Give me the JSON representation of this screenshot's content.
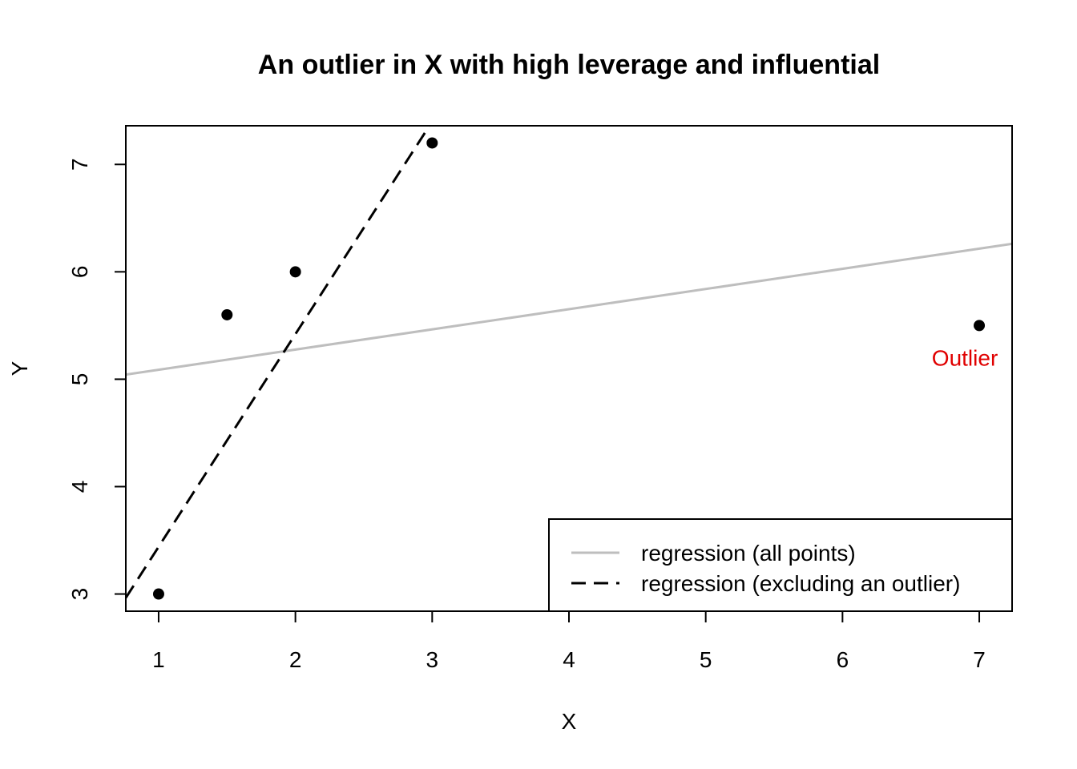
{
  "chart_data": {
    "type": "scatter",
    "title": "An outlier in X with high leverage and influential",
    "xlabel": "X",
    "ylabel": "Y",
    "xlim": [
      0.76,
      7.24
    ],
    "ylim": [
      2.84,
      7.36
    ],
    "x_ticks": [
      1,
      2,
      3,
      4,
      5,
      6,
      7
    ],
    "y_ticks": [
      3,
      4,
      5,
      6,
      7
    ],
    "points": [
      {
        "x": 1.0,
        "y": 3.0
      },
      {
        "x": 1.5,
        "y": 5.6
      },
      {
        "x": 2.0,
        "y": 6.0
      },
      {
        "x": 3.0,
        "y": 7.2
      },
      {
        "x": 7.0,
        "y": 5.5
      }
    ],
    "lines": [
      {
        "name": "regression (all points)",
        "intercept": 4.9,
        "slope": 0.188,
        "color": "#bebebe",
        "style": "solid"
      },
      {
        "name": "regression (excluding an outlier)",
        "intercept": 1.46,
        "slope": 1.98,
        "color": "#000000",
        "style": "dashed"
      }
    ],
    "annotations": [
      {
        "text": "Outlier",
        "x": 7.0,
        "y": 5.2,
        "color": "#e00000"
      }
    ],
    "legend_position": "bottom-right",
    "grid": false
  }
}
